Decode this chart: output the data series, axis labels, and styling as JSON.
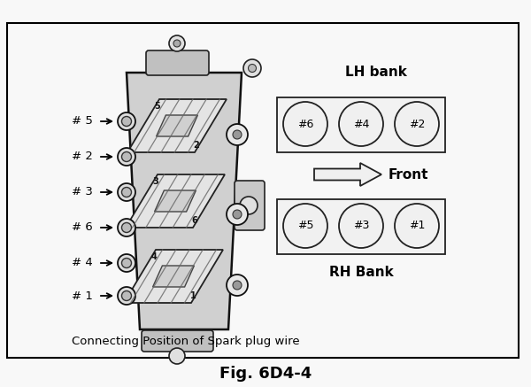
{
  "title": "Fig. 6D4-4",
  "subtitle": "Connecting Position of Spark plug wire",
  "bg_color": "#f8f8f8",
  "border_color": "#000000",
  "lh_bank_label": "LH bank",
  "rh_bank_label": "RH Bank",
  "front_label": "Front",
  "lh_cylinders": [
    "#6",
    "#4",
    "#2"
  ],
  "rh_cylinders": [
    "#5",
    "#3",
    "#1"
  ],
  "left_labels": [
    "# 5",
    "# 2",
    "# 3",
    "# 6",
    "# 4",
    "# 1"
  ],
  "coil_numbers_left": [
    "5",
    "3",
    "4"
  ],
  "coil_numbers_right": [
    "2",
    "6",
    "1"
  ]
}
